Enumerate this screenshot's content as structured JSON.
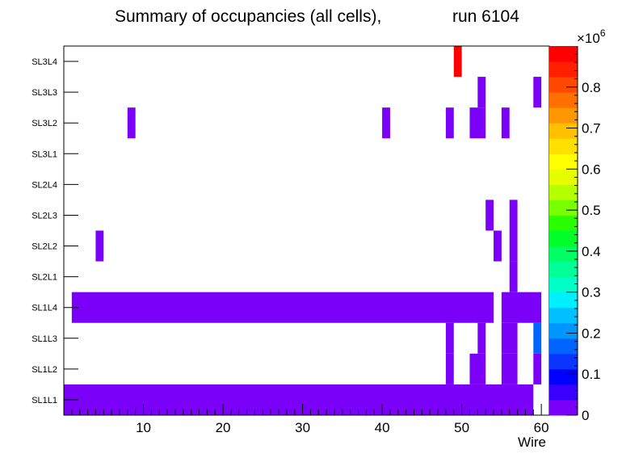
{
  "chart_data": {
    "type": "heatmap",
    "title": "Summary of occupancies (all cells),",
    "run_label": "run 6104",
    "xlabel": "Wire",
    "ylabel": "",
    "xlim": [
      0,
      61
    ],
    "x_ticks": [
      10,
      20,
      30,
      40,
      50,
      60
    ],
    "y_categories": [
      "SL1L1",
      "SL1L2",
      "SL1L3",
      "SL1L4",
      "SL2L1",
      "SL2L2",
      "SL2L3",
      "SL2L4",
      "SL3L1",
      "SL3L2",
      "SL3L3",
      "SL3L4"
    ],
    "z_axis": {
      "label": "×10⁶",
      "min": 0,
      "max": 0.9,
      "ticks": [
        "0",
        "0.1",
        "0.2",
        "0.3",
        "0.4",
        "0.5",
        "0.6",
        "0.7",
        "0.8"
      ],
      "tick_values": [
        0,
        0.1,
        0.2,
        0.3,
        0.4,
        0.5,
        0.6,
        0.7,
        0.8
      ],
      "palette": [
        "#7b00f8",
        "#3a00ff",
        "#0000ff",
        "#0a36ff",
        "#0064ff",
        "#0096ff",
        "#00c0ff",
        "#00f0ff",
        "#00ffc8",
        "#00ff96",
        "#00ff64",
        "#00ff2a",
        "#2aff00",
        "#78ff00",
        "#b4ff00",
        "#e6ff00",
        "#ffff00",
        "#ffe000",
        "#ffc000",
        "#ff9800",
        "#ff7000",
        "#ff4800",
        "#ff2000",
        "#ff0000"
      ]
    },
    "cells": [
      {
        "row": "SL1L1",
        "x_from": 0,
        "x_to": 59,
        "value": 0.01
      },
      {
        "row": "SL1L2",
        "x_from": 48,
        "x_to": 49,
        "value": 0.01
      },
      {
        "row": "SL1L2",
        "x_from": 51,
        "x_to": 53,
        "value": 0.01
      },
      {
        "row": "SL1L2",
        "x_from": 55,
        "x_to": 57,
        "value": 0.01
      },
      {
        "row": "SL1L2",
        "x_from": 59,
        "x_to": 60,
        "value": 0.01
      },
      {
        "row": "SL1L3",
        "x_from": 48,
        "x_to": 49,
        "value": 0.01
      },
      {
        "row": "SL1L3",
        "x_from": 52,
        "x_to": 53,
        "value": 0.01
      },
      {
        "row": "SL1L3",
        "x_from": 55,
        "x_to": 57,
        "value": 0.01
      },
      {
        "row": "SL1L3",
        "x_from": 59,
        "x_to": 60,
        "value": 0.18
      },
      {
        "row": "SL1L4",
        "x_from": 1,
        "x_to": 54,
        "value": 0.01
      },
      {
        "row": "SL1L4",
        "x_from": 55,
        "x_to": 60,
        "value": 0.01
      },
      {
        "row": "SL2L1",
        "x_from": 56,
        "x_to": 57,
        "value": 0.01
      },
      {
        "row": "SL2L2",
        "x_from": 4,
        "x_to": 5,
        "value": 0.01
      },
      {
        "row": "SL2L2",
        "x_from": 54,
        "x_to": 55,
        "value": 0.01
      },
      {
        "row": "SL2L2",
        "x_from": 56,
        "x_to": 57,
        "value": 0.01
      },
      {
        "row": "SL2L3",
        "x_from": 53,
        "x_to": 54,
        "value": 0.01
      },
      {
        "row": "SL2L3",
        "x_from": 56,
        "x_to": 57,
        "value": 0.01
      },
      {
        "row": "SL3L2",
        "x_from": 8,
        "x_to": 9,
        "value": 0.01
      },
      {
        "row": "SL3L2",
        "x_from": 40,
        "x_to": 41,
        "value": 0.01
      },
      {
        "row": "SL3L2",
        "x_from": 48,
        "x_to": 49,
        "value": 0.01
      },
      {
        "row": "SL3L2",
        "x_from": 51,
        "x_to": 53,
        "value": 0.01
      },
      {
        "row": "SL3L2",
        "x_from": 55,
        "x_to": 56,
        "value": 0.01
      },
      {
        "row": "SL3L3",
        "x_from": 52,
        "x_to": 53,
        "value": 0.01
      },
      {
        "row": "SL3L3",
        "x_from": 59,
        "x_to": 60,
        "value": 0.01
      },
      {
        "row": "SL3L4",
        "x_from": 49,
        "x_to": 50,
        "value": 0.88
      }
    ]
  }
}
